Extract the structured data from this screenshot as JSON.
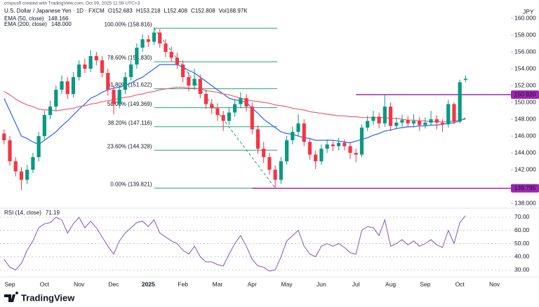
{
  "header": {
    "created": "crispus9 created with TradingView.com, Oct 09, 2025 11:59 UTC+3",
    "symbol": "U.S. Dollar / Japanese Yen · 1D · FXCM",
    "ohlc": [
      "O152.683",
      "H153.218",
      "L152.408",
      "C152.808"
    ],
    "volume": "Vol168.97K",
    "currency": "JPY"
  },
  "chart_data": [
    {
      "type": "candlestick",
      "categories": [
        null,
        "Sep",
        null,
        null,
        null,
        null,
        null,
        "Oct",
        null,
        null,
        null,
        null,
        null,
        "Nov",
        null,
        null,
        null,
        null,
        null,
        "Dec",
        null,
        null,
        null,
        null,
        null,
        "2025",
        null,
        null,
        null,
        null,
        null,
        "Feb",
        null,
        null,
        null,
        null,
        null,
        "Mar",
        null,
        null,
        null,
        null,
        null,
        "Apr",
        null,
        null,
        null,
        null,
        null,
        "May",
        null,
        null,
        null,
        null,
        null,
        "Jun",
        null,
        null,
        null,
        null,
        null,
        "Jul",
        null,
        null,
        null,
        null,
        null,
        "Aug",
        null,
        null,
        null,
        null,
        null,
        "Sep",
        null,
        null,
        null,
        null,
        null,
        "Oct",
        null,
        null,
        null,
        null,
        null,
        "Nov"
      ],
      "open": [
        146.3,
        145.5,
        143.0,
        141.8,
        140.8,
        142.0,
        143.5,
        146.0,
        148.5,
        149.5,
        151.5,
        152.5,
        151.0,
        153.0,
        154.5,
        154.0,
        155.5,
        155.0,
        153.5,
        151.5,
        149.8,
        151.5,
        153.0,
        154.5,
        156.5,
        157.5,
        157.2,
        158.3,
        157.0,
        156.0,
        155.3,
        154.5,
        153.0,
        152.0,
        152.8,
        151.0,
        149.8,
        149.3,
        148.5,
        147.8,
        148.8,
        149.8,
        150.5,
        149.5,
        146.8,
        144.5,
        143.5,
        142.0,
        140.8,
        143.0,
        145.5,
        146.5,
        147.5,
        145.3,
        143.8,
        143.0,
        144.5,
        145.0,
        144.8,
        145.2,
        144.8,
        144.0,
        143.8,
        147.0,
        147.8,
        148.3,
        147.5,
        149.5,
        147.2,
        147.6,
        147.9,
        147.5,
        147.8,
        147.3,
        147.6,
        148.0,
        147.6,
        147.4,
        149.8,
        147.7,
        152.683,
        null,
        null,
        null,
        null,
        null
      ],
      "high": [
        146.8,
        146.0,
        143.5,
        142.3,
        142.6,
        144.0,
        146.5,
        149.0,
        150.2,
        152.0,
        153.2,
        153.0,
        153.6,
        155.0,
        155.2,
        156.2,
        156.0,
        155.5,
        154.0,
        152.0,
        152.0,
        153.6,
        155.0,
        157.0,
        158.1,
        158.0,
        158.9,
        158.7,
        157.5,
        156.6,
        155.9,
        155.0,
        153.6,
        154.0,
        153.3,
        151.5,
        150.4,
        149.9,
        149.0,
        149.4,
        150.4,
        151.2,
        151.0,
        150.0,
        147.3,
        145.3,
        144.0,
        142.5,
        143.5,
        146.0,
        147.1,
        148.6,
        148.0,
        145.8,
        144.3,
        145.0,
        145.6,
        145.4,
        145.8,
        145.6,
        145.3,
        144.5,
        147.4,
        148.4,
        149.0,
        148.8,
        150.9,
        150.0,
        148.2,
        148.5,
        148.4,
        148.6,
        148.3,
        148.2,
        149.0,
        148.5,
        148.0,
        150.3,
        150.0,
        152.7,
        153.218,
        null,
        null,
        null,
        null,
        null
      ],
      "low": [
        145.0,
        142.5,
        141.2,
        139.6,
        140.3,
        141.6,
        143.0,
        145.6,
        148.0,
        149.0,
        151.0,
        150.4,
        150.6,
        152.6,
        153.5,
        153.6,
        154.4,
        153.0,
        150.8,
        148.6,
        149.3,
        151.0,
        152.6,
        154.0,
        156.0,
        156.6,
        156.8,
        156.5,
        155.4,
        154.8,
        154.0,
        152.4,
        151.3,
        151.5,
        150.5,
        149.2,
        148.6,
        147.8,
        146.6,
        147.3,
        148.3,
        149.3,
        148.9,
        146.2,
        143.9,
        142.8,
        141.4,
        139.8,
        140.3,
        142.6,
        145.0,
        146.0,
        144.8,
        143.2,
        142.1,
        142.6,
        144.0,
        144.2,
        144.3,
        144.3,
        143.3,
        142.9,
        143.5,
        146.6,
        147.3,
        146.9,
        147.1,
        146.6,
        146.8,
        147.1,
        147.0,
        147.1,
        146.6,
        146.9,
        147.2,
        146.8,
        146.5,
        147.0,
        147.4,
        147.5,
        152.408,
        null,
        null,
        null,
        null,
        null
      ],
      "close": [
        145.5,
        143.0,
        141.8,
        140.8,
        142.0,
        143.5,
        146.0,
        148.5,
        149.5,
        151.5,
        152.5,
        151.0,
        153.0,
        154.5,
        154.0,
        155.5,
        155.0,
        153.5,
        151.5,
        149.8,
        151.5,
        153.0,
        154.5,
        156.5,
        157.5,
        157.2,
        158.3,
        157.0,
        156.0,
        155.3,
        154.5,
        153.0,
        152.0,
        152.8,
        151.0,
        149.8,
        149.3,
        148.5,
        147.8,
        148.8,
        149.8,
        150.5,
        149.5,
        146.8,
        144.5,
        143.5,
        142.0,
        140.8,
        143.0,
        145.5,
        146.5,
        147.5,
        145.3,
        143.8,
        143.0,
        144.5,
        145.0,
        144.8,
        145.2,
        144.8,
        144.0,
        143.8,
        147.0,
        147.8,
        148.3,
        147.5,
        149.5,
        147.2,
        147.6,
        147.9,
        147.5,
        147.8,
        147.3,
        147.6,
        148.0,
        147.6,
        147.4,
        149.8,
        147.7,
        152.4,
        152.808,
        null,
        null,
        null,
        null,
        null
      ],
      "up_color": "#089981",
      "down_color": "#f23645",
      "series": [
        {
          "name": "EMA (50, close)",
          "color": "#2962ff",
          "value_label": "148.166",
          "values": [
            150.5,
            149.0,
            147.5,
            146.0,
            145.7,
            145.3,
            145.0,
            145.5,
            146.0,
            146.5,
            147.2,
            147.8,
            148.5,
            149.2,
            149.8,
            150.5,
            150.8,
            151.2,
            151.5,
            151.7,
            151.8,
            152.0,
            152.3,
            152.7,
            153.0,
            153.5,
            154.0,
            154.5,
            154.5,
            154.5,
            154.5,
            154.2,
            153.8,
            153.5,
            153.0,
            152.5,
            152.0,
            151.5,
            151.0,
            150.5,
            150.3,
            150.2,
            150.0,
            149.3,
            148.7,
            148.0,
            147.5,
            147.0,
            146.5,
            146.3,
            146.2,
            146.0,
            145.8,
            145.7,
            145.5,
            145.5,
            145.5,
            145.5,
            145.4,
            145.3,
            145.2,
            145.4,
            145.6,
            145.8,
            146.1,
            146.3,
            146.6,
            146.7,
            146.9,
            147.0,
            147.1,
            147.1,
            147.2,
            147.2,
            147.3,
            147.3,
            147.4,
            147.5,
            147.6,
            147.8,
            148.166,
            null,
            null,
            null,
            null,
            null
          ]
        },
        {
          "name": "EMA (200, close)",
          "color": "#f06070",
          "value_label": "148.000",
          "values": [
            151.3,
            150.9,
            150.4,
            150.0,
            149.7,
            149.5,
            149.2,
            149.1,
            149.1,
            149.0,
            149.1,
            149.2,
            149.3,
            149.5,
            149.6,
            149.8,
            149.9,
            150.1,
            150.2,
            150.3,
            150.5,
            150.6,
            150.7,
            150.9,
            151.0,
            151.2,
            151.3,
            151.5,
            151.6,
            151.7,
            151.8,
            151.8,
            151.7,
            151.7,
            151.6,
            151.4,
            151.3,
            151.2,
            151.0,
            150.9,
            150.7,
            150.5,
            150.3,
            150.2,
            150.1,
            150.0,
            149.9,
            149.7,
            149.6,
            149.5,
            149.3,
            149.2,
            149.1,
            148.9,
            148.8,
            148.7,
            148.6,
            148.5,
            148.4,
            148.4,
            148.3,
            148.3,
            148.2,
            148.2,
            148.2,
            148.2,
            148.2,
            148.1,
            148.1,
            148.0,
            147.9,
            147.9,
            147.8,
            147.8,
            147.7,
            147.7,
            147.7,
            147.7,
            147.8,
            147.9,
            148.0,
            null,
            null,
            null,
            null,
            null
          ]
        }
      ],
      "fib_color": "#22a37a",
      "fib_levels": [
        {
          "value": 158.816,
          "label": "100.00% (158.816)"
        },
        {
          "value": 154.83,
          "label": "78.60% (154.830)"
        },
        {
          "value": 151.622,
          "label": "61.80% (151.622)"
        },
        {
          "value": 149.369,
          "label": "50.00% (149.369)"
        },
        {
          "value": 147.116,
          "label": "38.20% (147.116)"
        },
        {
          "value": 144.328,
          "label": "23.60% (144.328)"
        },
        {
          "value": 139.821,
          "label": "0.00% (139.821)"
        }
      ],
      "level_color": "#9c27b0",
      "levels": [
        {
          "value": 150.92,
          "label": "150.920"
        },
        {
          "value": 139.795,
          "label": "139.795"
        }
      ],
      "ylim": [
        137.6,
        161.5
      ],
      "yticks": [
        {
          "value": 138,
          "label": "138.000"
        },
        {
          "value": 140,
          "label": "140.000"
        },
        {
          "value": 142,
          "label": "142.000"
        },
        {
          "value": 144,
          "label": "144.000"
        },
        {
          "value": 146,
          "label": "146.000"
        },
        {
          "value": 148,
          "label": "148.000"
        },
        {
          "value": 150,
          "label": "150.000"
        },
        {
          "value": 152,
          "label": "152.000"
        },
        {
          "value": 154,
          "label": "154.000"
        },
        {
          "value": 156,
          "label": "156.000"
        },
        {
          "value": 158,
          "label": "158.000"
        },
        {
          "value": 160,
          "label": "160.000"
        }
      ]
    },
    {
      "type": "line",
      "title": "RSI (14, close)",
      "value_label": "71.19",
      "color": "#7e57c2",
      "values": [
        38,
        32,
        30,
        35,
        45,
        52,
        62,
        65,
        66,
        70,
        68,
        58,
        65,
        70,
        62,
        67,
        62,
        55,
        48,
        42,
        52,
        58,
        62,
        66,
        67,
        63,
        68,
        58,
        55,
        52,
        50,
        45,
        42,
        48,
        40,
        36,
        36,
        34,
        33,
        42,
        50,
        56,
        48,
        38,
        33,
        32,
        29,
        30,
        40,
        52,
        56,
        60,
        48,
        42,
        40,
        48,
        50,
        48,
        50,
        47,
        43,
        42,
        60,
        63,
        62,
        56,
        68,
        48,
        50,
        53,
        49,
        52,
        48,
        50,
        53,
        49,
        47,
        60,
        50,
        66,
        71.19,
        null,
        null,
        null,
        null,
        null
      ],
      "ylim": [
        24.7,
        75.3
      ],
      "yticks": [
        {
          "value": 30,
          "label": "30.00"
        },
        {
          "value": 40,
          "label": "40.00"
        },
        {
          "value": 50,
          "label": "50.00"
        },
        {
          "value": 60,
          "label": "60.00"
        },
        {
          "value": 70,
          "label": "70.00"
        }
      ]
    }
  ],
  "footer": {
    "brand": "TradingView"
  }
}
